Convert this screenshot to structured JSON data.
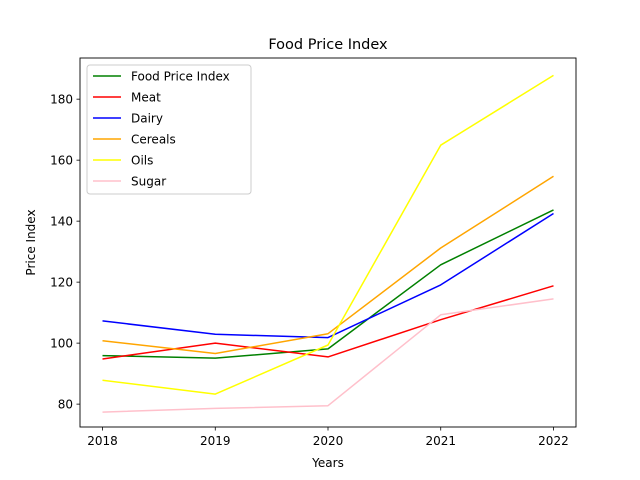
{
  "chart_data": {
    "type": "line",
    "title": "Food Price Index",
    "xlabel": "Years",
    "ylabel": "Price Index",
    "x": [
      2018,
      2019,
      2020,
      2021,
      2022
    ],
    "xticks": [
      "2018",
      "2019",
      "2020",
      "2021",
      "2022"
    ],
    "yticks": [
      80,
      100,
      120,
      140,
      160,
      180
    ],
    "xlim": [
      2017.8,
      2022.2
    ],
    "ylim": [
      72.5,
      193.5
    ],
    "grid": false,
    "legend": "top-left",
    "series": [
      {
        "name": "Food Price Index",
        "color": "#008000",
        "values": [
          95.9,
          95.1,
          98.1,
          125.7,
          143.7
        ]
      },
      {
        "name": "Meat",
        "color": "#ff0000",
        "values": [
          94.8,
          100.0,
          95.5,
          107.7,
          118.8
        ]
      },
      {
        "name": "Dairy",
        "color": "#0000ff",
        "values": [
          107.3,
          102.9,
          101.8,
          119.1,
          142.5
        ]
      },
      {
        "name": "Cereals",
        "color": "#ffa500",
        "values": [
          100.8,
          96.6,
          103.1,
          131.2,
          154.7
        ]
      },
      {
        "name": "Oils",
        "color": "#ffff00",
        "values": [
          87.8,
          83.3,
          99.4,
          164.9,
          187.8
        ]
      },
      {
        "name": "Sugar",
        "color": "#ffc0cb",
        "values": [
          77.4,
          78.6,
          79.5,
          109.3,
          114.5
        ]
      }
    ]
  }
}
